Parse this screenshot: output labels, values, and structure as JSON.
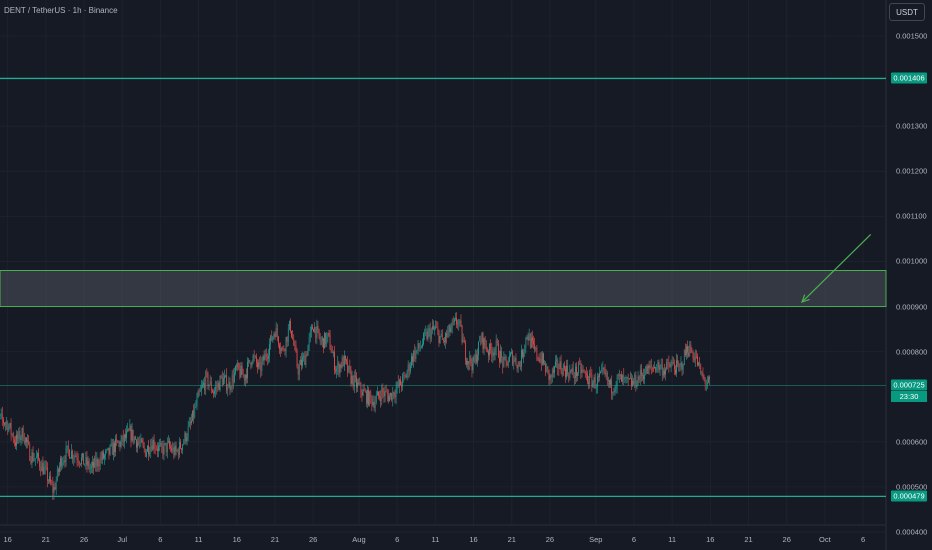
{
  "header": {
    "symbol_title": "DENT / TetherUS · 1h · Binance",
    "currency_label": "USDT"
  },
  "colors": {
    "background": "#161a25",
    "level_line": "#22ab94",
    "zone_border": "#4caf50",
    "zone_fill": "#4e525c",
    "arrow": "#4caf50",
    "up_candle": "#26a69a",
    "down_candle": "#ef5350",
    "badge": "#089981"
  },
  "badges": {
    "upper_level": "0.001406",
    "current_price": "0.000725",
    "countdown": "23:30",
    "lower_level": "0.000479"
  },
  "chart_data": {
    "type": "candlestick",
    "title": "DENT / TetherUS · 1h · Binance",
    "xlabel": "",
    "ylabel": "",
    "ylim": [
      0.00036,
      0.00158
    ],
    "xlim": [
      "2025-06-15",
      "2025-10-09"
    ],
    "y_ticks": [
      "0.001500",
      "0.001300",
      "0.001200",
      "0.001100",
      "0.001000",
      "0.000900",
      "0.000800",
      "0.000600",
      "0.000500",
      "0.000400"
    ],
    "x_ticks": [
      {
        "label": "16",
        "date": "2025-06-16"
      },
      {
        "label": "21",
        "date": "2025-06-21"
      },
      {
        "label": "26",
        "date": "2025-06-26"
      },
      {
        "label": "Jul",
        "date": "2025-07-01"
      },
      {
        "label": "6",
        "date": "2025-07-06"
      },
      {
        "label": "11",
        "date": "2025-07-11"
      },
      {
        "label": "16",
        "date": "2025-07-16"
      },
      {
        "label": "21",
        "date": "2025-07-21"
      },
      {
        "label": "26",
        "date": "2025-07-26"
      },
      {
        "label": "Aug",
        "date": "2025-08-01"
      },
      {
        "label": "6",
        "date": "2025-08-06"
      },
      {
        "label": "11",
        "date": "2025-08-11"
      },
      {
        "label": "16",
        "date": "2025-08-16"
      },
      {
        "label": "21",
        "date": "2025-08-21"
      },
      {
        "label": "26",
        "date": "2025-08-26"
      },
      {
        "label": "Sep",
        "date": "2025-09-01"
      },
      {
        "label": "6",
        "date": "2025-09-06"
      },
      {
        "label": "11",
        "date": "2025-09-11"
      },
      {
        "label": "16",
        "date": "2025-09-16"
      },
      {
        "label": "21",
        "date": "2025-09-21"
      },
      {
        "label": "26",
        "date": "2025-09-26"
      },
      {
        "label": "Oct",
        "date": "2025-10-01"
      },
      {
        "label": "6",
        "date": "2025-10-06"
      }
    ],
    "horizontal_levels": [
      0.001406,
      0.000725,
      0.000479
    ],
    "zone": {
      "low": 0.0009,
      "high": 0.00098
    },
    "arrow": {
      "from": [
        "2025-10-07",
        0.00106
      ],
      "to": [
        "2025-09-28",
        0.00091
      ]
    },
    "price_path": [
      [
        "2025-06-14",
        0.00066
      ],
      [
        "2025-06-16",
        0.00064
      ],
      [
        "2025-06-17",
        0.0006
      ],
      [
        "2025-06-18",
        0.00062
      ],
      [
        "2025-06-19",
        0.00057
      ],
      [
        "2025-06-20",
        0.00056
      ],
      [
        "2025-06-21",
        0.00053
      ],
      [
        "2025-06-22",
        0.00049
      ],
      [
        "2025-06-23",
        0.00056
      ],
      [
        "2025-06-24",
        0.00058
      ],
      [
        "2025-06-25",
        0.00057
      ],
      [
        "2025-06-26",
        0.000555
      ],
      [
        "2025-06-27",
        0.00054
      ],
      [
        "2025-06-28",
        0.00056
      ],
      [
        "2025-06-29",
        0.00057
      ],
      [
        "2025-06-30",
        0.00059
      ],
      [
        "2025-07-01",
        0.0006
      ],
      [
        "2025-07-02",
        0.00062
      ],
      [
        "2025-07-03",
        0.0006
      ],
      [
        "2025-07-04",
        0.00058
      ],
      [
        "2025-07-05",
        0.0006
      ],
      [
        "2025-07-06",
        0.00058
      ],
      [
        "2025-07-07",
        0.00059
      ],
      [
        "2025-07-08",
        0.000575
      ],
      [
        "2025-07-09",
        0.0006
      ],
      [
        "2025-07-10",
        0.00064
      ],
      [
        "2025-07-11",
        0.0007
      ],
      [
        "2025-07-12",
        0.00074
      ],
      [
        "2025-07-13",
        0.00071
      ],
      [
        "2025-07-14",
        0.00074
      ],
      [
        "2025-07-15",
        0.000725
      ],
      [
        "2025-07-16",
        0.00076
      ],
      [
        "2025-07-17",
        0.000745
      ],
      [
        "2025-07-18",
        0.00079
      ],
      [
        "2025-07-19",
        0.00076
      ],
      [
        "2025-07-20",
        0.0008
      ],
      [
        "2025-07-21",
        0.00085
      ],
      [
        "2025-07-22",
        0.0008
      ],
      [
        "2025-07-23",
        0.00086
      ],
      [
        "2025-07-24",
        0.00076
      ],
      [
        "2025-07-25",
        0.00079
      ],
      [
        "2025-07-26",
        0.00086
      ],
      [
        "2025-07-27",
        0.00082
      ],
      [
        "2025-07-28",
        0.00083
      ],
      [
        "2025-07-29",
        0.00076
      ],
      [
        "2025-07-30",
        0.00078
      ],
      [
        "2025-07-31",
        0.00074
      ],
      [
        "2025-08-01",
        0.00072
      ],
      [
        "2025-08-02",
        0.0007
      ],
      [
        "2025-08-03",
        0.00069
      ],
      [
        "2025-08-04",
        0.00071
      ],
      [
        "2025-08-05",
        0.0007
      ],
      [
        "2025-08-06",
        0.00072
      ],
      [
        "2025-08-07",
        0.00074
      ],
      [
        "2025-08-08",
        0.00079
      ],
      [
        "2025-08-09",
        0.00081
      ],
      [
        "2025-08-10",
        0.00084
      ],
      [
        "2025-08-11",
        0.00085
      ],
      [
        "2025-08-12",
        0.00082
      ],
      [
        "2025-08-13",
        0.00085
      ],
      [
        "2025-08-14",
        0.00087
      ],
      [
        "2025-08-15",
        0.00079
      ],
      [
        "2025-08-16",
        0.00077
      ],
      [
        "2025-08-17",
        0.00083
      ],
      [
        "2025-08-18",
        0.0008
      ],
      [
        "2025-08-19",
        0.00081
      ],
      [
        "2025-08-20",
        0.00077
      ],
      [
        "2025-08-21",
        0.00079
      ],
      [
        "2025-08-22",
        0.00077
      ],
      [
        "2025-08-23",
        0.00084
      ],
      [
        "2025-08-24",
        0.0008
      ],
      [
        "2025-08-25",
        0.00078
      ],
      [
        "2025-08-26",
        0.00074
      ],
      [
        "2025-08-27",
        0.00077
      ],
      [
        "2025-08-28",
        0.00076
      ],
      [
        "2025-08-29",
        0.00075
      ],
      [
        "2025-08-30",
        0.00076
      ],
      [
        "2025-08-31",
        0.00074
      ],
      [
        "2025-09-01",
        0.00073
      ],
      [
        "2025-09-02",
        0.00075
      ],
      [
        "2025-09-03",
        0.00072
      ],
      [
        "2025-09-04",
        0.00074
      ],
      [
        "2025-09-05",
        0.00073
      ],
      [
        "2025-09-06",
        0.00073
      ],
      [
        "2025-09-07",
        0.00075
      ],
      [
        "2025-09-08",
        0.00076
      ],
      [
        "2025-09-09",
        0.00077
      ],
      [
        "2025-09-10",
        0.00076
      ],
      [
        "2025-09-11",
        0.00077
      ],
      [
        "2025-09-12",
        0.00076
      ],
      [
        "2025-09-13",
        0.00081
      ],
      [
        "2025-09-14",
        0.00079
      ],
      [
        "2025-09-15",
        0.00074
      ],
      [
        "2025-09-16",
        0.000725
      ]
    ]
  }
}
